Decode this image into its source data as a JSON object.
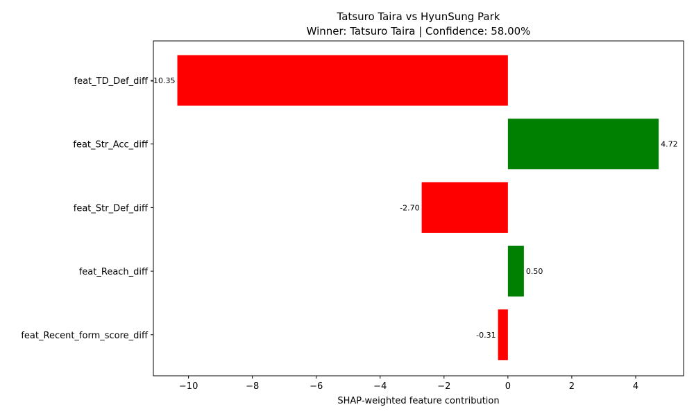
{
  "chart_data": {
    "type": "bar",
    "orientation": "horizontal",
    "title": "Tatsuro Taira vs HyunSung Park",
    "subtitle": "Winner: Tatsuro Taira | Confidence: 58.00%",
    "xlabel": "SHAP-weighted feature contribution",
    "ylabel": "",
    "xlim": [
      -11.1,
      5.5
    ],
    "xticks": [
      -10,
      -8,
      -6,
      -4,
      -2,
      0,
      2,
      4
    ],
    "xtick_labels": [
      "−10",
      "−8",
      "−6",
      "−4",
      "−2",
      "0",
      "2",
      "4"
    ],
    "categories": [
      "feat_TD_Def_diff",
      "feat_Str_Acc_diff",
      "feat_Str_Def_diff",
      "feat_Reach_diff",
      "feat_Recent_form_score_diff"
    ],
    "values": [
      -10.35,
      4.72,
      -2.7,
      0.5,
      -0.31
    ],
    "value_labels": [
      "-10.35",
      "4.72",
      "-2.70",
      "0.50",
      "-0.31"
    ],
    "positive_color": "#008000",
    "negative_color": "#ff0000",
    "grid": false,
    "legend": "none"
  }
}
